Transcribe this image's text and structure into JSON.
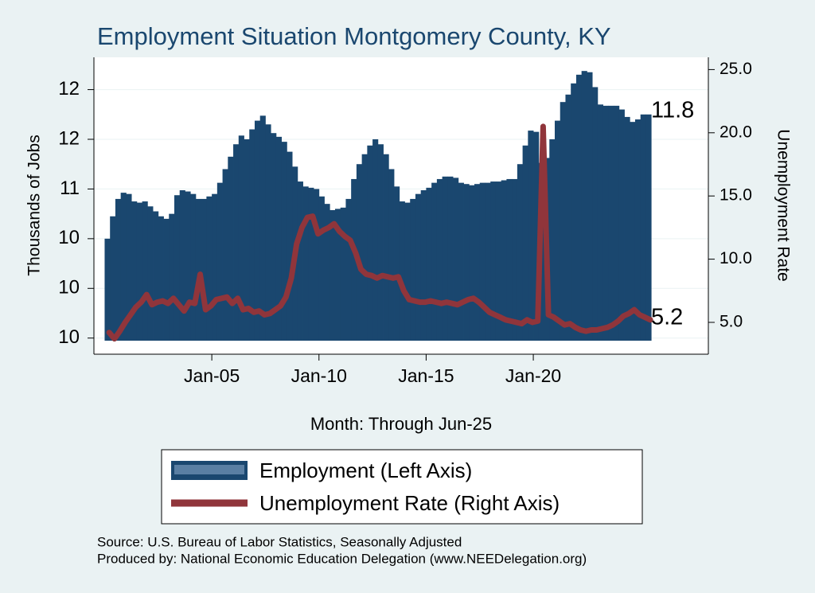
{
  "chart_data": {
    "type": "bar-line",
    "title": "Employment Situation Montgomery  County, KY",
    "y_label": "Thousands of Jobs",
    "y2_label": "Unemployment Rate",
    "x_label": "Month: Through Jun-25",
    "source": "Source: U.S. Bureau of Labor Statistics, Seasonally Adjusted",
    "produced_by": "Produced by: National Economic Education Delegation (www.NEEDelegation.org)",
    "x": [
      "Mar-00",
      "Jun-00",
      "Sep-00",
      "Dec-00",
      "Mar-01",
      "Jun-01",
      "Sep-01",
      "Dec-01",
      "Mar-02",
      "Jun-02",
      "Sep-02",
      "Dec-02",
      "Mar-03",
      "Jun-03",
      "Sep-03",
      "Dec-03",
      "Mar-04",
      "Jun-04",
      "Sep-04",
      "Dec-04",
      "Mar-05",
      "Jun-05",
      "Sep-05",
      "Dec-05",
      "Mar-06",
      "Jun-06",
      "Sep-06",
      "Dec-06",
      "Mar-07",
      "Jun-07",
      "Sep-07",
      "Dec-07",
      "Mar-08",
      "Jun-08",
      "Sep-08",
      "Dec-08",
      "Mar-09",
      "Jun-09",
      "Sep-09",
      "Dec-09",
      "Mar-10",
      "Jun-10",
      "Sep-10",
      "Dec-10",
      "Mar-11",
      "Jun-11",
      "Sep-11",
      "Dec-11",
      "Mar-12",
      "Jun-12",
      "Sep-12",
      "Dec-12",
      "Mar-13",
      "Jun-13",
      "Sep-13",
      "Dec-13",
      "Mar-14",
      "Jun-14",
      "Sep-14",
      "Dec-14",
      "Mar-15",
      "Jun-15",
      "Sep-15",
      "Dec-15",
      "Mar-16",
      "Jun-16",
      "Sep-16",
      "Dec-16",
      "Mar-17",
      "Jun-17",
      "Sep-17",
      "Dec-17",
      "Mar-18",
      "Jun-18",
      "Sep-18",
      "Dec-18",
      "Mar-19",
      "Jun-19",
      "Sep-19",
      "Dec-19",
      "Mar-20",
      "Jun-20",
      "Sep-20",
      "Dec-20",
      "Mar-21",
      "Jun-21",
      "Sep-21",
      "Dec-21",
      "Mar-22",
      "Jun-22",
      "Sep-22",
      "Dec-22",
      "Mar-23",
      "Jun-23",
      "Sep-23",
      "Dec-23",
      "Mar-24",
      "Jun-24",
      "Sep-24",
      "Dec-24",
      "Mar-25",
      "Jun-25"
    ],
    "xlim": [
      "Jul-99",
      "Mar-28"
    ],
    "xticks": [
      "Jan-05",
      "Jan-10",
      "Jan-15",
      "Jan-20"
    ],
    "ylim": [
      9.87,
      12.26
    ],
    "yticks": [
      {
        "value": 10.0,
        "label": "10"
      },
      {
        "value": 10.4,
        "label": "10"
      },
      {
        "value": 10.8,
        "label": "10"
      },
      {
        "value": 11.2,
        "label": "11"
      },
      {
        "value": 11.6,
        "label": "12"
      },
      {
        "value": 12.0,
        "label": "12"
      }
    ],
    "y2lim": [
      2.48,
      25.97
    ],
    "y2ticks": [
      {
        "value": 5,
        "label": "5.0"
      },
      {
        "value": 10,
        "label": "10.0"
      },
      {
        "value": 15,
        "label": "15.0"
      },
      {
        "value": 20,
        "label": "20.0"
      },
      {
        "value": 25,
        "label": "25.0"
      }
    ],
    "grid": true,
    "series": [
      {
        "name": "Employment (Left Axis)",
        "type": "bar",
        "color": "#1a476f",
        "values": [
          10.8,
          10.98,
          11.12,
          11.17,
          11.16,
          11.1,
          11.09,
          11.1,
          11.06,
          11.02,
          10.98,
          10.96,
          11.0,
          11.15,
          11.19,
          11.18,
          11.16,
          11.12,
          11.12,
          11.14,
          11.16,
          11.25,
          11.36,
          11.46,
          11.56,
          11.63,
          11.6,
          11.68,
          11.75,
          11.79,
          11.72,
          11.65,
          11.62,
          11.58,
          11.5,
          11.38,
          11.26,
          11.22,
          11.21,
          11.2,
          11.14,
          11.08,
          11.03,
          11.04,
          11.05,
          11.12,
          11.28,
          11.4,
          11.48,
          11.55,
          11.6,
          11.56,
          11.48,
          11.36,
          11.22,
          11.1,
          11.09,
          11.12,
          11.16,
          11.19,
          11.21,
          11.25,
          11.28,
          11.3,
          11.3,
          11.29,
          11.25,
          11.24,
          11.23,
          11.24,
          11.25,
          11.25,
          11.26,
          11.26,
          11.27,
          11.28,
          11.28,
          11.4,
          11.55,
          11.67,
          11.66,
          11.41,
          11.45,
          11.6,
          11.75,
          11.9,
          11.96,
          12.05,
          12.12,
          12.15,
          12.14,
          12.02,
          11.88,
          11.87,
          11.87,
          11.87,
          11.84,
          11.78,
          11.74,
          11.76,
          11.8,
          11.8
        ]
      },
      {
        "name": "Unemployment Rate (Right Axis)",
        "type": "line",
        "axis": "y2",
        "color": "#90353b",
        "values": [
          4.2,
          3.7,
          4.3,
          5.0,
          5.6,
          6.2,
          6.6,
          7.2,
          6.4,
          6.6,
          6.7,
          6.5,
          6.9,
          6.4,
          5.9,
          6.6,
          6.5,
          8.8,
          6.0,
          6.3,
          6.8,
          6.9,
          7.0,
          6.5,
          6.9,
          6.0,
          6.1,
          5.8,
          5.9,
          5.6,
          5.7,
          6.0,
          6.3,
          7.0,
          8.5,
          11.2,
          12.5,
          13.3,
          13.4,
          12.0,
          12.3,
          12.5,
          12.8,
          12.2,
          11.8,
          11.5,
          10.5,
          9.2,
          8.8,
          8.7,
          8.5,
          8.7,
          8.6,
          8.5,
          8.6,
          7.5,
          6.8,
          6.7,
          6.6,
          6.6,
          6.7,
          6.6,
          6.5,
          6.6,
          6.5,
          6.4,
          6.6,
          6.8,
          6.9,
          6.6,
          6.2,
          5.8,
          5.6,
          5.4,
          5.2,
          5.1,
          5.0,
          4.9,
          5.2,
          5.0,
          5.1,
          20.5,
          5.6,
          5.4,
          5.1,
          4.8,
          4.9,
          4.6,
          4.4,
          4.3,
          4.4,
          4.4,
          4.5,
          4.6,
          4.8,
          5.1,
          5.5,
          5.7,
          6.0,
          5.6,
          5.4,
          5.2
        ]
      }
    ]
  }
}
